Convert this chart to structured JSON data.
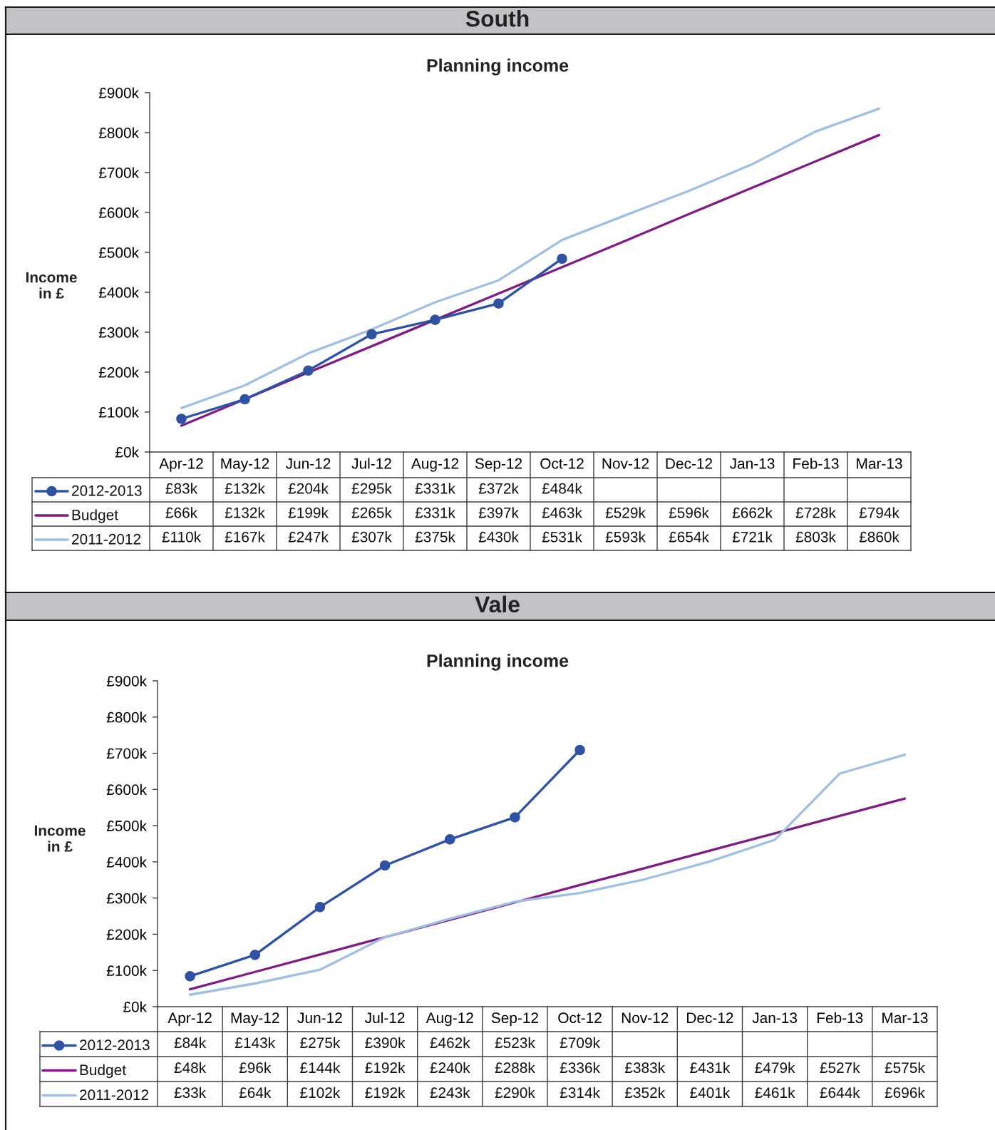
{
  "chart_data": [
    {
      "type": "line",
      "title": "South",
      "subtitle": "Planning income",
      "ylabel": "Income\nin £",
      "categories": [
        "Apr-12",
        "May-12",
        "Jun-12",
        "Jul-12",
        "Aug-12",
        "Sep-12",
        "Oct-12",
        "Nov-12",
        "Dec-12",
        "Jan-13",
        "Feb-13",
        "Mar-13"
      ],
      "ylim": [
        0,
        900
      ],
      "yticks": [
        {
          "value": 0,
          "label": "£0k"
        },
        {
          "value": 100,
          "label": "£100k"
        },
        {
          "value": 200,
          "label": "£200k"
        },
        {
          "value": 300,
          "label": "£300k"
        },
        {
          "value": 400,
          "label": "£400k"
        },
        {
          "value": 500,
          "label": "£500k"
        },
        {
          "value": 600,
          "label": "£600k"
        },
        {
          "value": 700,
          "label": "£700k"
        },
        {
          "value": 800,
          "label": "£800k"
        },
        {
          "value": 900,
          "label": "£900k"
        }
      ],
      "legend": "bottom",
      "series": [
        {
          "name": "2012-2013",
          "color": "#2f52a3",
          "marker": "circle",
          "values": [
            83,
            132,
            204,
            295,
            331,
            372,
            484,
            null,
            null,
            null,
            null,
            null
          ],
          "value_labels": [
            "£83k",
            "£132k",
            "£204k",
            "£295k",
            "£331k",
            "£372k",
            "£484k",
            null,
            null,
            null,
            null,
            null
          ]
        },
        {
          "name": "Budget",
          "color": "#7d1f80",
          "marker": "none",
          "values": [
            66,
            132,
            199,
            265,
            331,
            397,
            463,
            529,
            596,
            662,
            728,
            794
          ],
          "value_labels": [
            "£66k",
            "£132k",
            "£199k",
            "£265k",
            "£331k",
            "£397k",
            "£463k",
            "£529k",
            "£596k",
            "£662k",
            "£728k",
            "£794k"
          ]
        },
        {
          "name": "2011-2012",
          "color": "#a3bfe0",
          "marker": "none",
          "values": [
            110,
            167,
            247,
            307,
            375,
            430,
            531,
            593,
            654,
            721,
            803,
            860
          ],
          "value_labels": [
            "£110k",
            "£167k",
            "£247k",
            "£307k",
            "£375k",
            "£430k",
            "£531k",
            "£593k",
            "£654k",
            "£721k",
            "£803k",
            "£860k"
          ]
        }
      ]
    },
    {
      "type": "line",
      "title": "Vale",
      "subtitle": "Planning income",
      "ylabel": "Income\nin £",
      "categories": [
        "Apr-12",
        "May-12",
        "Jun-12",
        "Jul-12",
        "Aug-12",
        "Sep-12",
        "Oct-12",
        "Nov-12",
        "Dec-12",
        "Jan-13",
        "Feb-13",
        "Mar-13"
      ],
      "ylim": [
        0,
        900
      ],
      "yticks": [
        {
          "value": 0,
          "label": "£0k"
        },
        {
          "value": 100,
          "label": "£100k"
        },
        {
          "value": 200,
          "label": "£200k"
        },
        {
          "value": 300,
          "label": "£300k"
        },
        {
          "value": 400,
          "label": "£400k"
        },
        {
          "value": 500,
          "label": "£500k"
        },
        {
          "value": 600,
          "label": "£600k"
        },
        {
          "value": 700,
          "label": "£700k"
        },
        {
          "value": 800,
          "label": "£800k"
        },
        {
          "value": 900,
          "label": "£900k"
        }
      ],
      "legend": "bottom",
      "series": [
        {
          "name": "2012-2013",
          "color": "#2f52a3",
          "marker": "circle",
          "values": [
            84,
            143,
            275,
            390,
            462,
            523,
            709,
            null,
            null,
            null,
            null,
            null
          ],
          "value_labels": [
            "£84k",
            "£143k",
            "£275k",
            "£390k",
            "£462k",
            "£523k",
            "£709k",
            null,
            null,
            null,
            null,
            null
          ]
        },
        {
          "name": "Budget",
          "color": "#7d1f80",
          "marker": "none",
          "values": [
            48,
            96,
            144,
            192,
            240,
            288,
            336,
            383,
            431,
            479,
            527,
            575
          ],
          "value_labels": [
            "£48k",
            "£96k",
            "£144k",
            "£192k",
            "£240k",
            "£288k",
            "£336k",
            "£383k",
            "£431k",
            "£479k",
            "£527k",
            "£575k"
          ]
        },
        {
          "name": "2011-2012",
          "color": "#a3bfe0",
          "marker": "none",
          "values": [
            33,
            64,
            102,
            192,
            243,
            290,
            314,
            352,
            401,
            461,
            644,
            696
          ],
          "value_labels": [
            "£33k",
            "£64k",
            "£102k",
            "£192k",
            "£243k",
            "£290k",
            "£314k",
            "£352k",
            "£401k",
            "£461k",
            "£644k",
            "£696k"
          ]
        }
      ]
    }
  ]
}
